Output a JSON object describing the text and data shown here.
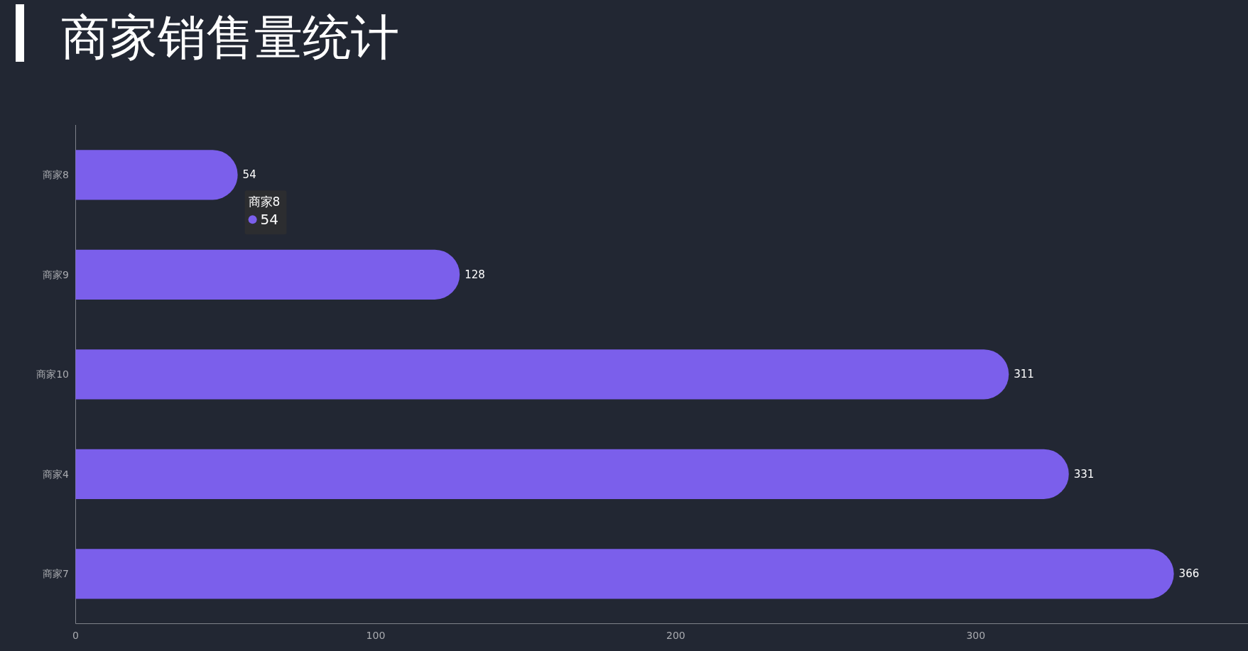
{
  "chart_data": {
    "type": "bar",
    "orientation": "horizontal",
    "title": "商家销售量统计",
    "categories": [
      "商家8",
      "商家9",
      "商家10",
      "商家4",
      "商家7"
    ],
    "values": [
      54,
      128,
      311,
      331,
      366
    ],
    "color": "#7b5feb",
    "xlim": [
      0,
      390
    ],
    "xticks": [
      0,
      100,
      200,
      300
    ],
    "data_labels": true,
    "annotations": [
      {
        "text": "商家8",
        "x": 54,
        "y": "商家8"
      },
      {
        "text": "54",
        "x": 54,
        "y": "商家8"
      }
    ]
  }
}
